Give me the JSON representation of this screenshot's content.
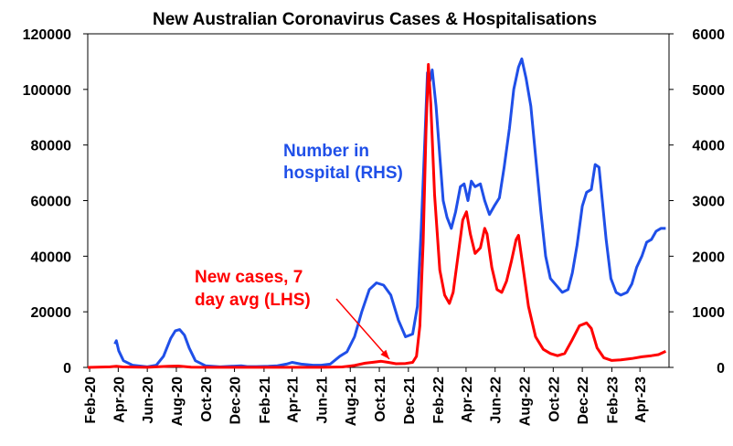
{
  "chart_data": {
    "type": "line",
    "title": "New Australian Coronavirus Cases & Hospitalisations",
    "x_tick_labels": [
      "Feb-20",
      "Apr-20",
      "Jun-20",
      "Aug-20",
      "Oct-20",
      "Dec-20",
      "Feb-21",
      "Apr-21",
      "Jun-21",
      "Aug-21",
      "Oct-21",
      "Dec-21",
      "Feb-22",
      "Apr-22",
      "Jun-22",
      "Aug-22",
      "Oct-22",
      "Dec-22",
      "Feb-23",
      "Apr-23"
    ],
    "y_left": {
      "ticks": [
        "0",
        "20000",
        "40000",
        "60000",
        "80000",
        "100000",
        "120000"
      ],
      "ylim": [
        0,
        120000
      ]
    },
    "y_right": {
      "ticks": [
        "0",
        "1000",
        "2000",
        "3000",
        "4000",
        "5000",
        "6000"
      ],
      "ylim": [
        0,
        6000
      ]
    },
    "grid": false,
    "colors": {
      "cases": "#ff0000",
      "hospital": "#1f4fe8",
      "arrow": "#ff0000"
    },
    "annotations": {
      "hospital_label": [
        "Number in",
        "hospital (RHS)"
      ],
      "cases_label": [
        "New cases, 7",
        "day avg (LHS)"
      ]
    },
    "series": [
      {
        "name": "Number in hospital (RHS)",
        "axis": "right",
        "color": "#1f4fe8",
        "points": [
          [
            "2020-03-25",
            420
          ],
          [
            "2020-03-28",
            480
          ],
          [
            "2020-04-02",
            300
          ],
          [
            "2020-04-12",
            120
          ],
          [
            "2020-05-01",
            40
          ],
          [
            "2020-06-01",
            10
          ],
          [
            "2020-06-20",
            40
          ],
          [
            "2020-07-05",
            200
          ],
          [
            "2020-07-20",
            520
          ],
          [
            "2020-07-30",
            660
          ],
          [
            "2020-08-08",
            680
          ],
          [
            "2020-08-18",
            580
          ],
          [
            "2020-08-28",
            350
          ],
          [
            "2020-09-10",
            120
          ],
          [
            "2020-10-01",
            30
          ],
          [
            "2020-11-01",
            10
          ],
          [
            "2020-12-15",
            30
          ],
          [
            "2020-12-28",
            15
          ],
          [
            "2021-01-15",
            15
          ],
          [
            "2021-02-10",
            20
          ],
          [
            "2021-03-01",
            30
          ],
          [
            "2021-03-20",
            60
          ],
          [
            "2021-04-01",
            90
          ],
          [
            "2021-04-20",
            60
          ],
          [
            "2021-05-15",
            40
          ],
          [
            "2021-06-01",
            40
          ],
          [
            "2021-06-20",
            60
          ],
          [
            "2021-07-10",
            200
          ],
          [
            "2021-07-25",
            280
          ],
          [
            "2021-08-10",
            550
          ],
          [
            "2021-08-25",
            1000
          ],
          [
            "2021-09-10",
            1400
          ],
          [
            "2021-09-25",
            1520
          ],
          [
            "2021-10-10",
            1480
          ],
          [
            "2021-10-25",
            1300
          ],
          [
            "2021-11-10",
            850
          ],
          [
            "2021-11-25",
            550
          ],
          [
            "2021-12-10",
            600
          ],
          [
            "2021-12-20",
            1100
          ],
          [
            "2021-12-28",
            2500
          ],
          [
            "2022-01-05",
            4200
          ],
          [
            "2022-01-10",
            5300
          ],
          [
            "2022-01-15",
            5150
          ],
          [
            "2022-01-20",
            5350
          ],
          [
            "2022-01-28",
            4700
          ],
          [
            "2022-02-05",
            3800
          ],
          [
            "2022-02-12",
            3000
          ],
          [
            "2022-02-20",
            2700
          ],
          [
            "2022-03-01",
            2500
          ],
          [
            "2022-03-10",
            2800
          ],
          [
            "2022-03-20",
            3250
          ],
          [
            "2022-03-28",
            3300
          ],
          [
            "2022-04-05",
            3000
          ],
          [
            "2022-04-12",
            3350
          ],
          [
            "2022-04-20",
            3250
          ],
          [
            "2022-05-01",
            3300
          ],
          [
            "2022-05-10",
            3000
          ],
          [
            "2022-05-20",
            2750
          ],
          [
            "2022-05-30",
            2900
          ],
          [
            "2022-06-10",
            3050
          ],
          [
            "2022-06-20",
            3600
          ],
          [
            "2022-07-01",
            4300
          ],
          [
            "2022-07-10",
            5000
          ],
          [
            "2022-07-20",
            5400
          ],
          [
            "2022-07-27",
            5550
          ],
          [
            "2022-08-05",
            5200
          ],
          [
            "2022-08-15",
            4700
          ],
          [
            "2022-08-25",
            3800
          ],
          [
            "2022-09-05",
            2800
          ],
          [
            "2022-09-15",
            2000
          ],
          [
            "2022-09-25",
            1600
          ],
          [
            "2022-10-10",
            1450
          ],
          [
            "2022-10-20",
            1350
          ],
          [
            "2022-11-01",
            1400
          ],
          [
            "2022-11-10",
            1700
          ],
          [
            "2022-11-20",
            2200
          ],
          [
            "2022-12-01",
            2900
          ],
          [
            "2022-12-10",
            3150
          ],
          [
            "2022-12-20",
            3200
          ],
          [
            "2022-12-28",
            3650
          ],
          [
            "2023-01-05",
            3600
          ],
          [
            "2023-01-12",
            3000
          ],
          [
            "2023-01-20",
            2300
          ],
          [
            "2023-01-30",
            1600
          ],
          [
            "2023-02-10",
            1350
          ],
          [
            "2023-02-20",
            1300
          ],
          [
            "2023-03-05",
            1350
          ],
          [
            "2023-03-15",
            1500
          ],
          [
            "2023-03-25",
            1800
          ],
          [
            "2023-04-05",
            2000
          ],
          [
            "2023-04-15",
            2250
          ],
          [
            "2023-04-25",
            2300
          ],
          [
            "2023-05-05",
            2450
          ],
          [
            "2023-05-15",
            2500
          ],
          [
            "2023-05-25",
            2500
          ]
        ]
      },
      {
        "name": "New cases, 7 day avg (LHS)",
        "axis": "left",
        "color": "#ff0000",
        "points": [
          [
            "2020-01-28",
            0
          ],
          [
            "2020-03-15",
            200
          ],
          [
            "2020-03-28",
            400
          ],
          [
            "2020-04-10",
            150
          ],
          [
            "2020-06-01",
            20
          ],
          [
            "2020-07-15",
            400
          ],
          [
            "2020-08-05",
            500
          ],
          [
            "2020-09-01",
            100
          ],
          [
            "2020-10-15",
            20
          ],
          [
            "2021-06-01",
            20
          ],
          [
            "2021-07-15",
            150
          ],
          [
            "2021-08-10",
            700
          ],
          [
            "2021-09-01",
            1500
          ],
          [
            "2021-09-20",
            1900
          ],
          [
            "2021-10-05",
            2200
          ],
          [
            "2021-10-20",
            1800
          ],
          [
            "2021-11-05",
            1300
          ],
          [
            "2021-11-25",
            1400
          ],
          [
            "2021-12-10",
            1800
          ],
          [
            "2021-12-18",
            4000
          ],
          [
            "2021-12-25",
            15000
          ],
          [
            "2022-01-01",
            45000
          ],
          [
            "2022-01-07",
            85000
          ],
          [
            "2022-01-12",
            109000
          ],
          [
            "2022-01-17",
            95000
          ],
          [
            "2022-01-25",
            62000
          ],
          [
            "2022-02-05",
            35000
          ],
          [
            "2022-02-15",
            26000
          ],
          [
            "2022-02-25",
            23000
          ],
          [
            "2022-03-05",
            27000
          ],
          [
            "2022-03-15",
            40000
          ],
          [
            "2022-03-25",
            53000
          ],
          [
            "2022-04-02",
            56000
          ],
          [
            "2022-04-10",
            48000
          ],
          [
            "2022-04-20",
            41000
          ],
          [
            "2022-05-01",
            43000
          ],
          [
            "2022-05-10",
            50000
          ],
          [
            "2022-05-15",
            48000
          ],
          [
            "2022-05-25",
            36000
          ],
          [
            "2022-06-05",
            28000
          ],
          [
            "2022-06-15",
            27000
          ],
          [
            "2022-06-25",
            31000
          ],
          [
            "2022-07-05",
            38000
          ],
          [
            "2022-07-15",
            46000
          ],
          [
            "2022-07-20",
            47500
          ],
          [
            "2022-07-28",
            38000
          ],
          [
            "2022-08-10",
            22000
          ],
          [
            "2022-08-25",
            11000
          ],
          [
            "2022-09-10",
            6500
          ],
          [
            "2022-09-25",
            5000
          ],
          [
            "2022-10-10",
            4200
          ],
          [
            "2022-10-25",
            5000
          ],
          [
            "2022-11-10",
            10000
          ],
          [
            "2022-11-25",
            15000
          ],
          [
            "2022-12-10",
            16000
          ],
          [
            "2022-12-20",
            14000
          ],
          [
            "2023-01-01",
            7000
          ],
          [
            "2023-01-15",
            3500
          ],
          [
            "2023-02-01",
            2500
          ],
          [
            "2023-02-20",
            2700
          ],
          [
            "2023-03-15",
            3200
          ],
          [
            "2023-04-05",
            3800
          ],
          [
            "2023-04-25",
            4200
          ],
          [
            "2023-05-10",
            4600
          ],
          [
            "2023-05-25",
            5800
          ]
        ]
      }
    ]
  }
}
